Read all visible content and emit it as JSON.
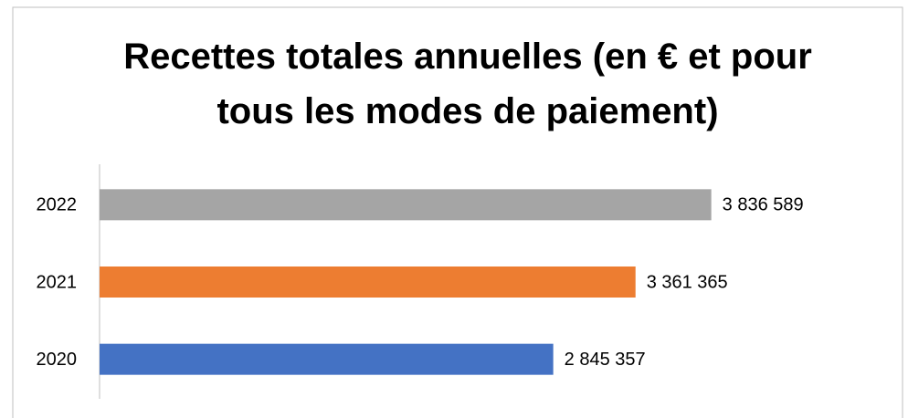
{
  "chart_data": {
    "type": "bar",
    "orientation": "horizontal",
    "title": "Recettes totales annuelles (en € et pour tous les modes de paiement)",
    "categories": [
      "2020",
      "2021",
      "2022"
    ],
    "values": [
      2845357,
      3361365,
      3836589
    ],
    "value_labels": [
      "2 845 357",
      "3 361 365",
      "3 836 589"
    ],
    "colors": [
      "#4472c4",
      "#ed7d31",
      "#a5a5a5"
    ],
    "xlim": [
      0,
      4400000
    ]
  }
}
